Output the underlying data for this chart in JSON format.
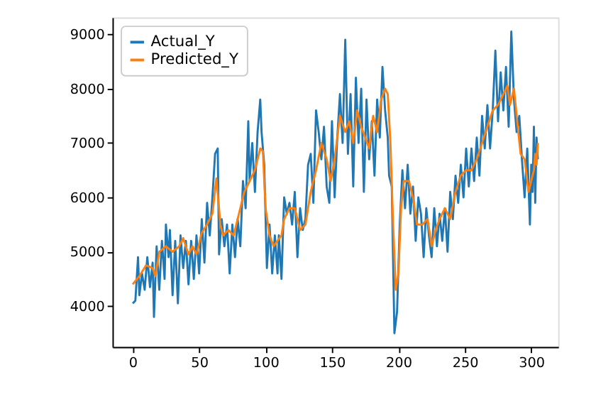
{
  "chart_data": {
    "type": "line",
    "xlim": [
      -15.25,
      320.25
    ],
    "ylim": [
      3250,
      9310
    ],
    "xticks": [
      0,
      50,
      100,
      150,
      200,
      250,
      300
    ],
    "yticks": [
      4000,
      5000,
      6000,
      7000,
      8000,
      9000
    ],
    "grid": false,
    "legend": "top left",
    "marker": "none",
    "line_style": "solid",
    "series": [
      {
        "name": "Actual_Y",
        "color": "#1f77b4",
        "x": [
          0,
          2,
          4,
          5,
          7,
          9,
          11,
          13,
          15,
          16,
          18,
          20,
          22,
          24,
          25,
          27,
          28,
          30,
          32,
          34,
          36,
          38,
          40,
          42,
          44,
          46,
          48,
          50,
          52,
          54,
          56,
          58,
          60,
          62,
          64,
          65,
          67,
          69,
          71,
          73,
          75,
          77,
          79,
          81,
          83,
          85,
          87,
          88,
          90,
          92,
          94,
          96,
          97,
          99,
          101,
          103,
          105,
          107,
          109,
          110,
          112,
          114,
          116,
          118,
          120,
          122,
          124,
          126,
          128,
          130,
          132,
          134,
          136,
          138,
          140,
          142,
          144,
          146,
          148,
          150,
          152,
          154,
          156,
          158,
          160,
          162,
          164,
          166,
          168,
          170,
          172,
          174,
          176,
          178,
          180,
          182,
          184,
          186,
          188,
          190,
          192,
          193,
          195,
          197,
          199,
          201,
          203,
          205,
          207,
          209,
          211,
          213,
          215,
          217,
          219,
          221,
          223,
          225,
          227,
          229,
          231,
          233,
          235,
          237,
          239,
          241,
          243,
          245,
          247,
          249,
          251,
          253,
          255,
          257,
          259,
          261,
          263,
          265,
          267,
          269,
          271,
          273,
          275,
          277,
          279,
          281,
          283,
          285,
          287,
          289,
          291,
          293,
          295,
          297,
          299,
          300,
          301,
          302,
          303,
          304,
          305
        ],
        "values": [
          4050,
          4100,
          4900,
          4200,
          4600,
          4300,
          4900,
          4350,
          4800,
          3800,
          5100,
          4300,
          5200,
          4500,
          5500,
          4900,
          5400,
          4200,
          5200,
          4050,
          5300,
          4700,
          5200,
          4400,
          5200,
          4500,
          5300,
          4600,
          5600,
          4800,
          5900,
          5300,
          6000,
          6800,
          6900,
          4950,
          5600,
          5100,
          5500,
          4600,
          5500,
          4900,
          5600,
          5100,
          6300,
          5800,
          7400,
          6300,
          7000,
          6100,
          7200,
          7800,
          7200,
          6600,
          4700,
          5500,
          4600,
          5300,
          4600,
          5300,
          4500,
          6000,
          5700,
          5900,
          5500,
          6100,
          4900,
          5800,
          5400,
          5600,
          6600,
          6800,
          5900,
          7600,
          7200,
          6700,
          7300,
          6200,
          5900,
          7400,
          6000,
          7100,
          7900,
          7000,
          8900,
          6800,
          7900,
          6200,
          8200,
          7000,
          8000,
          6100,
          7800,
          6700,
          7400,
          6400,
          7800,
          7100,
          8400,
          7600,
          7100,
          6400,
          6200,
          3500,
          3900,
          5500,
          6500,
          5800,
          6600,
          5700,
          6200,
          5200,
          6000,
          5700,
          4900,
          5800,
          5300,
          4900,
          5800,
          5100,
          5700,
          5200,
          5800,
          5000,
          6100,
          5600,
          6400,
          5900,
          6600,
          6000,
          6900,
          6200,
          6900,
          6300,
          7100,
          6400,
          7500,
          6900,
          7700,
          6900,
          7600,
          8700,
          7400,
          8300,
          7600,
          8400,
          7300,
          9050,
          7800,
          7200,
          7500,
          6700,
          6000,
          6900,
          5500,
          6600,
          6100,
          7300,
          5900,
          7100,
          6700
        ]
      },
      {
        "name": "Predicted_Y",
        "color": "#ff7f0e",
        "x": [
          0,
          5,
          10,
          15,
          17,
          20,
          25,
          30,
          35,
          38,
          42,
          45,
          48,
          52,
          56,
          60,
          63,
          66,
          68,
          72,
          76,
          80,
          84,
          88,
          92,
          96,
          98,
          100,
          103,
          106,
          109,
          112,
          114,
          118,
          122,
          126,
          130,
          134,
          138,
          142,
          146,
          149,
          152,
          156,
          160,
          163,
          166,
          169,
          172,
          175,
          178,
          181,
          184,
          187,
          190,
          192,
          194,
          196,
          198,
          200,
          202,
          204,
          208,
          211,
          214,
          218,
          222,
          225,
          228,
          231,
          235,
          239,
          243,
          247,
          251,
          255,
          259,
          263,
          267,
          271,
          275,
          279,
          282,
          284,
          287,
          289,
          292,
          295,
          298,
          300,
          302,
          303,
          304,
          305
        ],
        "values": [
          4400,
          4550,
          4750,
          4700,
          4550,
          5000,
          5100,
          5000,
          5100,
          5250,
          4950,
          5100,
          4950,
          5350,
          5500,
          5700,
          6350,
          5500,
          5300,
          5400,
          5300,
          5700,
          6100,
          6300,
          6500,
          6900,
          6850,
          5800,
          5300,
          5100,
          5200,
          5300,
          5600,
          5800,
          5800,
          5400,
          5500,
          6100,
          6500,
          7000,
          6700,
          6300,
          6700,
          7500,
          7200,
          7400,
          7000,
          7600,
          7300,
          7100,
          6900,
          7500,
          7200,
          7800,
          8000,
          7900,
          7000,
          5500,
          4300,
          4600,
          5800,
          6300,
          6300,
          6000,
          5500,
          5500,
          5600,
          5100,
          5400,
          5600,
          5800,
          5600,
          6100,
          6400,
          6500,
          6500,
          6700,
          7000,
          7300,
          7600,
          7700,
          7900,
          8050,
          7700,
          8000,
          7500,
          6800,
          6700,
          6100,
          6300,
          6500,
          6800,
          6600,
          7000
        ]
      }
    ]
  }
}
